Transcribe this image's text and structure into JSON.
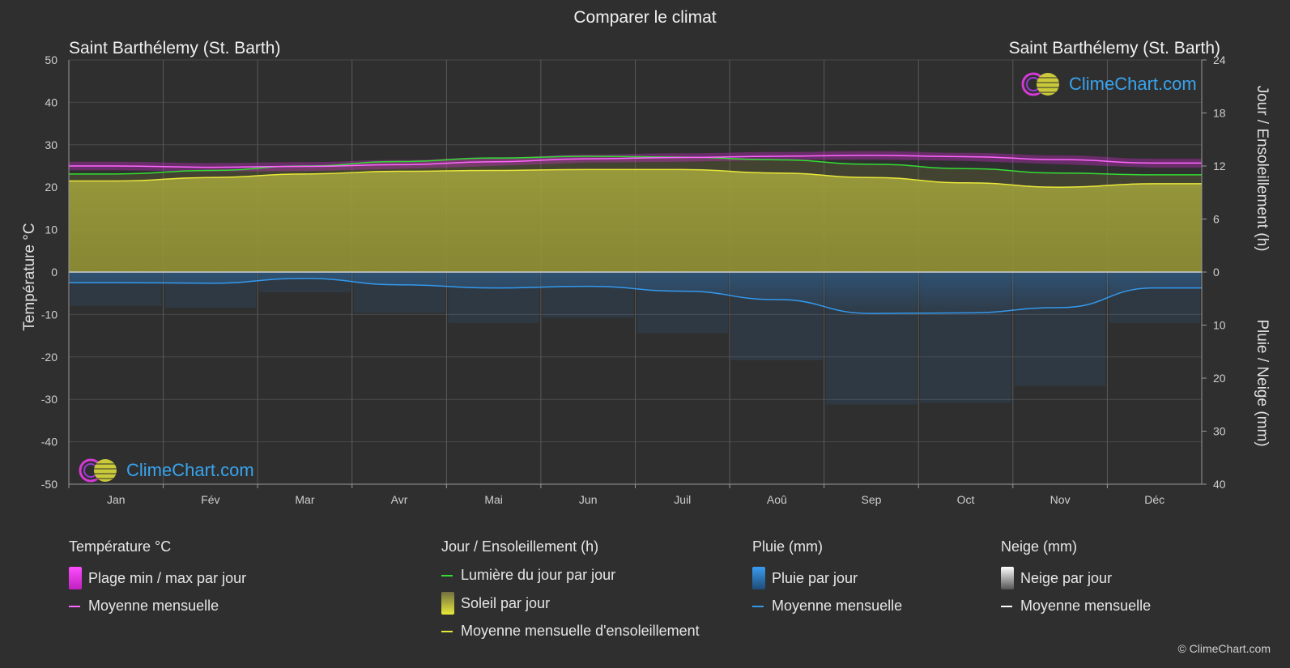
{
  "header": {
    "title": "Comparer le climat",
    "location_left": "Saint Barthélemy (St. Barth)",
    "location_right": "Saint Barthélemy (St. Barth)"
  },
  "axes": {
    "left_label": "Température °C",
    "right_label_top": "Jour / Ensoleillement (h)",
    "right_label_bottom": "Pluie / Neige (mm)"
  },
  "logo": {
    "text": "ClimeChart.com"
  },
  "legend": {
    "temperature": {
      "heading": "Température °C",
      "items": [
        "Plage min / max par jour",
        "Moyenne mensuelle"
      ]
    },
    "sun": {
      "heading": "Jour / Ensoleillement (h)",
      "items": [
        "Lumière du jour par jour",
        "Soleil par jour",
        "Moyenne mensuelle d'ensoleillement"
      ]
    },
    "rain": {
      "heading": "Pluie (mm)",
      "items": [
        "Pluie par jour",
        "Moyenne mensuelle"
      ]
    },
    "snow": {
      "heading": "Neige (mm)",
      "items": [
        "Neige par jour",
        "Moyenne mensuelle"
      ]
    }
  },
  "copyright": "© ClimeChart.com",
  "colors": {
    "background": "#2f2f2f",
    "temp_range": "#d62ad6",
    "temp_mean": "#ff66ff",
    "daylight": "#33dd33",
    "sunshine_fill": "#b8b83a",
    "sunshine_mean": "#e8e83a",
    "rain": "#2f86d6",
    "rain_mean": "#3399ee",
    "snow_mean": "#ffffff"
  },
  "chart_data": {
    "type": "area",
    "categories": [
      "Jan",
      "Fév",
      "Mar",
      "Avr",
      "Mai",
      "Jun",
      "Juil",
      "Aoû",
      "Sep",
      "Oct",
      "Nov",
      "Déc"
    ],
    "left_axis": {
      "label": "Température °C",
      "ylim": [
        -50,
        50
      ],
      "ticks": [
        50,
        40,
        30,
        20,
        10,
        0,
        -10,
        -20,
        -30,
        -40,
        -50
      ]
    },
    "right_axis_top": {
      "label": "Jour / Ensoleillement (h)",
      "ylim": [
        0,
        24
      ],
      "ticks": [
        24,
        18,
        12,
        6,
        0
      ]
    },
    "right_axis_bottom": {
      "label": "Pluie / Neige (mm)",
      "ylim": [
        0,
        40
      ],
      "ticks": [
        0,
        10,
        20,
        30,
        40
      ]
    },
    "grid": true,
    "series": [
      {
        "name": "Moyenne mensuelle",
        "group": "temperature",
        "unit": "°C",
        "values": [
          25.0,
          24.7,
          24.9,
          25.3,
          26.0,
          26.7,
          27.0,
          27.3,
          27.5,
          27.2,
          26.5,
          25.7
        ]
      },
      {
        "name": "Plage min / max par jour",
        "group": "temperature_range",
        "unit": "°C",
        "min": [
          24.0,
          23.7,
          23.8,
          24.3,
          25.0,
          25.8,
          26.0,
          26.4,
          26.5,
          26.2,
          25.4,
          24.6
        ],
        "max": [
          26.0,
          25.7,
          25.9,
          26.4,
          27.0,
          27.7,
          28.0,
          28.3,
          28.5,
          28.1,
          27.5,
          26.7
        ]
      },
      {
        "name": "Lumière du jour par jour",
        "group": "daylight",
        "unit": "h",
        "values": [
          11.1,
          11.5,
          12.0,
          12.5,
          12.9,
          13.1,
          13.0,
          12.7,
          12.2,
          11.7,
          11.2,
          11.0
        ]
      },
      {
        "name": "Soleil par jour",
        "group": "sunshine",
        "unit": "h",
        "values": [
          10.3,
          10.7,
          11.1,
          11.4,
          11.5,
          11.6,
          11.6,
          11.2,
          10.7,
          10.1,
          9.6,
          10.0
        ]
      },
      {
        "name": "Moyenne mensuelle d'ensoleillement",
        "group": "sunshine_mean",
        "unit": "h",
        "values": [
          10.3,
          10.7,
          11.1,
          11.4,
          11.5,
          11.6,
          11.6,
          11.2,
          10.7,
          10.1,
          9.6,
          10.0
        ]
      },
      {
        "name": "Moyenne mensuelle",
        "group": "rain_mean",
        "unit": "mm",
        "values": [
          2.0,
          2.1,
          1.2,
          2.4,
          3.0,
          2.7,
          3.6,
          5.2,
          7.8,
          7.7,
          6.7,
          3.0
        ]
      },
      {
        "name": "Moyenne mensuelle",
        "group": "snow_mean",
        "unit": "mm",
        "values": [
          0,
          0,
          0,
          0,
          0,
          0,
          0,
          0,
          0,
          0,
          0,
          0
        ]
      }
    ]
  }
}
